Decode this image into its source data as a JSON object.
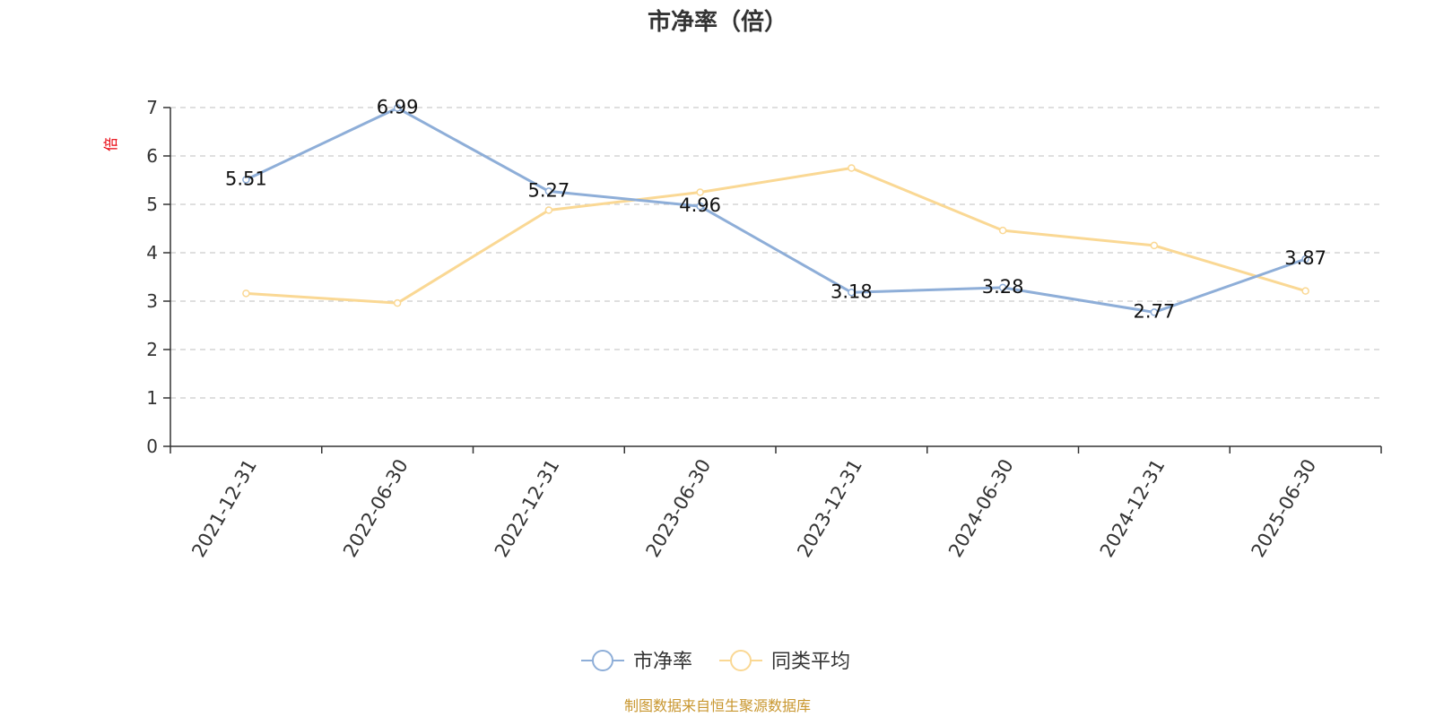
{
  "chart_data": {
    "type": "line",
    "title": "市净率（倍）",
    "ylabel": "倍",
    "xlabel": "",
    "categories": [
      "2021-12-31",
      "2022-06-30",
      "2022-12-31",
      "2023-06-30",
      "2023-12-31",
      "2024-06-30",
      "2024-12-31",
      "2025-06-30"
    ],
    "yticks": [
      "0",
      "1",
      "2",
      "3",
      "4",
      "5",
      "6",
      "7"
    ],
    "ylim": [
      0,
      7
    ],
    "grid": true,
    "legend_position": "bottom",
    "series": [
      {
        "name": "市净率",
        "color": "#8eaed8",
        "values": [
          5.51,
          6.99,
          5.27,
          4.96,
          3.18,
          3.28,
          2.77,
          3.87
        ],
        "labels": [
          "5.51",
          "6.99",
          "5.27",
          "4.96",
          "3.18",
          "3.28",
          "2.77",
          "3.87"
        ]
      },
      {
        "name": "同类平均",
        "color": "#fad894",
        "values": [
          3.16,
          2.96,
          4.88,
          5.25,
          5.75,
          4.46,
          4.15,
          3.21
        ]
      }
    ]
  },
  "source": "制图数据来自恒生聚源数据库"
}
